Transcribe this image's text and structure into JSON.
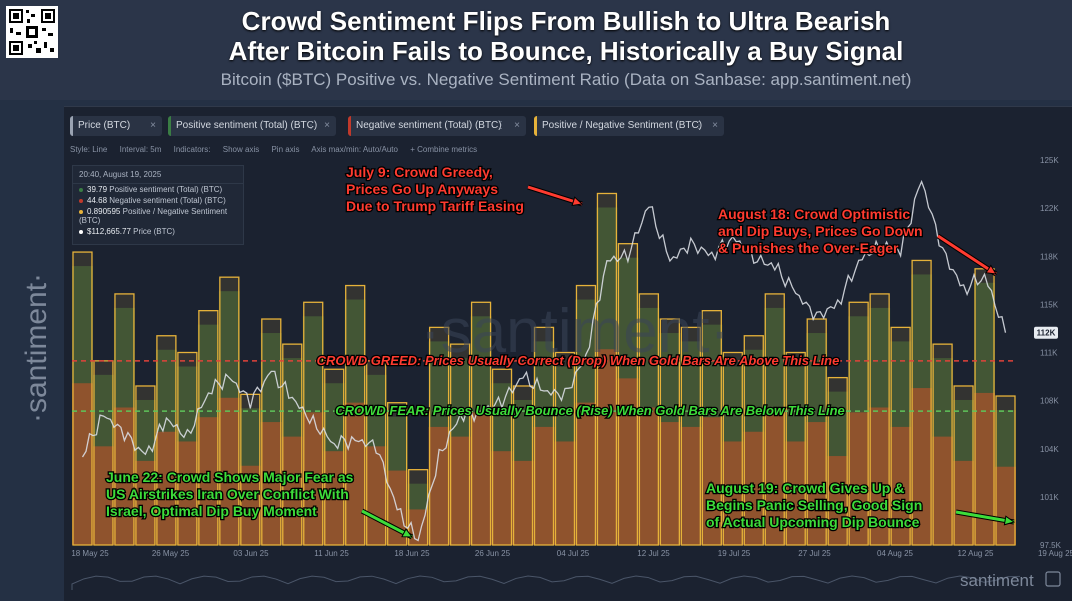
{
  "header": {
    "title_line1": "Crowd Sentiment Flips From Bullish to Ultra Bearish",
    "title_line2": "After Bitcoin Fails to Bounce, Historically a Buy Signal",
    "subtitle": "Bitcoin ($BTC) Positive vs. Negative Sentiment Ratio (Data on Sanbase: app.santiment.net)"
  },
  "brand": {
    "name": "·santiment·",
    "footer_logo": "santiment",
    "watermark": "·santiment·"
  },
  "tabs": [
    {
      "label": "Price (BTC)",
      "color": "#9aa3b2"
    },
    {
      "label": "Positive sentiment (Total) (BTC)",
      "color": "#3a7d44"
    },
    {
      "label": "Negative sentiment (Total) (BTC)",
      "color": "#c0392b"
    },
    {
      "label": "Positive / Negative Sentiment (BTC)",
      "color": "#e6b23a"
    }
  ],
  "toolbar": {
    "style": "Style: Line",
    "interval": "Interval: 5m",
    "indicators": "Indicators:",
    "show_axis": "Show axis",
    "pin_axis": "Pin axis",
    "axis_max_min": "Axis max/min: Auto/Auto",
    "combine": "+ Combine metrics"
  },
  "legend": {
    "timestamp": "20:40, August 19, 2025",
    "rows": [
      {
        "value": "39.79",
        "label": "Positive sentiment (Total) (BTC)",
        "color": "#3a7d44"
      },
      {
        "value": "44.68",
        "label": "Negative sentiment (Total) (BTC)",
        "color": "#c0392b"
      },
      {
        "value": "0.890595",
        "label": "Positive / Negative Sentiment (BTC)",
        "color": "#e6b23a"
      },
      {
        "value": "$112,665.77",
        "label": "Price (BTC)",
        "color": "#ffffff"
      }
    ]
  },
  "annotations": {
    "july9": [
      "July 9: Crowd Greedy,",
      "Prices Go Up Anyways",
      "Due to Trump Tariff Easing"
    ],
    "aug18": [
      "August 18: Crowd Optimistic",
      "and Dip Buys, Prices Go Down",
      "& Punishes the Over-Eager"
    ],
    "greed_line": "CROWD GREED: Prices Usually Correct (Drop) When Gold Bars Are Above This Line",
    "fear_line": "CROWD FEAR: Prices Usually Bounce (Rise) When Gold Bars Are Below This Line",
    "june22": [
      "June 22: Crowd Shows Major Fear as",
      "US Airstrikes Iran Over Conflict With",
      "Israel, Optimal Dip Buy Moment"
    ],
    "aug19": [
      "August 19: Crowd Gives Up &",
      "Begins Panic Selling, Good Sign",
      "of Actual Upcoming Dip Bounce"
    ]
  },
  "colors": {
    "price_line": "#d9dde3",
    "positive_fill": "#3d6a3a",
    "negative_fill": "#a0452a",
    "ratio_bar": "#e6b23a",
    "greed_line": "#e0433a",
    "fear_line": "#5fc45a",
    "annotation_red": "#ff3b30",
    "annotation_green": "#3ddc3a",
    "price_badge": "#e8ecf1"
  },
  "chart_data": {
    "type": "line",
    "x_ticks": [
      "18 May 25",
      "26 May 25",
      "03 Jun 25",
      "11 Jun 25",
      "18 Jun 25",
      "26 Jun 25",
      "04 Jul 25",
      "12 Jul 25",
      "19 Jul 25",
      "27 Jul 25",
      "04 Aug 25",
      "12 Aug 25",
      "19 Aug 25"
    ],
    "y_ticks": [
      "125K",
      "122K",
      "118K",
      "115K",
      "111K",
      "108K",
      "104K",
      "101K",
      "97.5K"
    ],
    "ylim": [
      97500,
      125000
    ],
    "current_price_label": "112K",
    "series": [
      {
        "name": "Price (BTC)",
        "values": [
          104000,
          106800,
          105500,
          103800,
          106500,
          105200,
          108500,
          109500,
          107800,
          109800,
          108000,
          106200,
          104800,
          105000,
          104600,
          100000,
          97800,
          103800,
          106800,
          107000,
          107800,
          109500,
          108500,
          108200,
          111000,
          117800,
          118200,
          121800,
          117800,
          119000,
          118200,
          119500,
          118000,
          117400,
          115500,
          113800,
          114700,
          117800,
          118900,
          118500,
          123500,
          118500,
          115700,
          116800,
          112665
        ]
      },
      {
        "name": "Positive / Negative Sentiment (BTC)",
        "values": [
          1.75,
          1.1,
          1.5,
          0.95,
          1.25,
          1.15,
          1.4,
          1.6,
          0.9,
          1.35,
          1.2,
          1.45,
          1.05,
          1.55,
          1.1,
          0.85,
          0.45,
          1.3,
          1.2,
          1.45,
          1.05,
          0.95,
          1.3,
          1.15,
          1.55,
          2.1,
          1.8,
          1.5,
          1.35,
          1.3,
          1.4,
          1.15,
          1.25,
          1.5,
          1.15,
          1.35,
          1.0,
          1.45,
          1.5,
          1.3,
          1.7,
          1.2,
          0.95,
          1.65,
          0.89
        ]
      }
    ]
  }
}
